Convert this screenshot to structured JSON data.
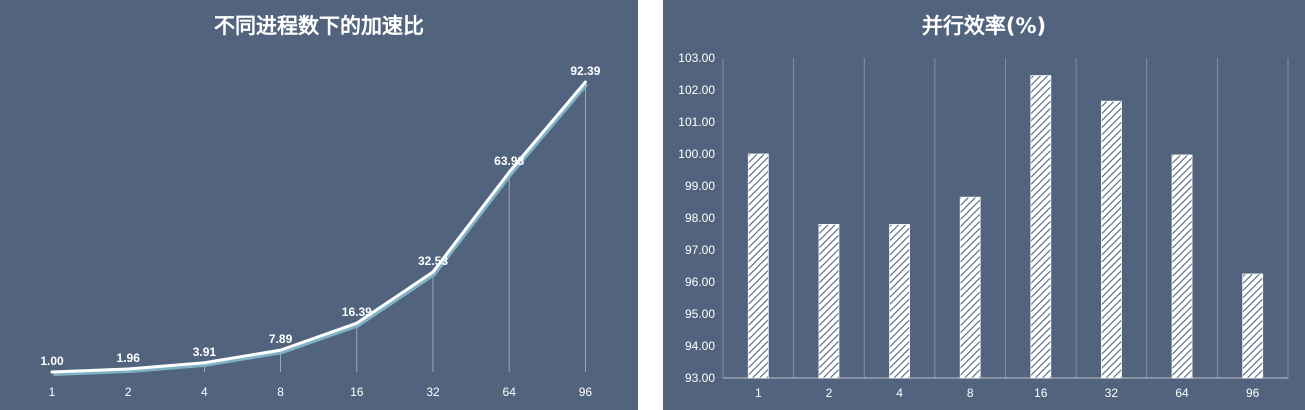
{
  "chart_data": [
    {
      "type": "line",
      "title": "不同进程数下的加速比",
      "categories": [
        "1",
        "2",
        "4",
        "8",
        "16",
        "32",
        "64",
        "96"
      ],
      "values": [
        1.0,
        1.96,
        3.91,
        7.89,
        16.39,
        32.53,
        63.98,
        92.39
      ],
      "data_labels": [
        "1.00",
        "1.96",
        "3.91",
        "7.89",
        "16.39",
        "32.53",
        "63.98",
        "92.39"
      ],
      "ylim": [
        0,
        100
      ],
      "drop_lines": true,
      "line_color": "#ffffff",
      "background": "#52647d"
    },
    {
      "type": "bar",
      "title": "并行效率(%)",
      "categories": [
        "1",
        "2",
        "4",
        "8",
        "16",
        "32",
        "64",
        "96"
      ],
      "values": [
        100.0,
        97.8,
        97.8,
        98.65,
        102.45,
        101.65,
        99.97,
        96.25
      ],
      "ylim": [
        93,
        103
      ],
      "yticks": [
        "93.00",
        "94.00",
        "95.00",
        "96.00",
        "97.00",
        "98.00",
        "99.00",
        "100.00",
        "101.00",
        "102.00",
        "103.00"
      ],
      "bar_fill": "diagonal-hatch",
      "grid": "vertical",
      "background": "#52647d"
    }
  ]
}
